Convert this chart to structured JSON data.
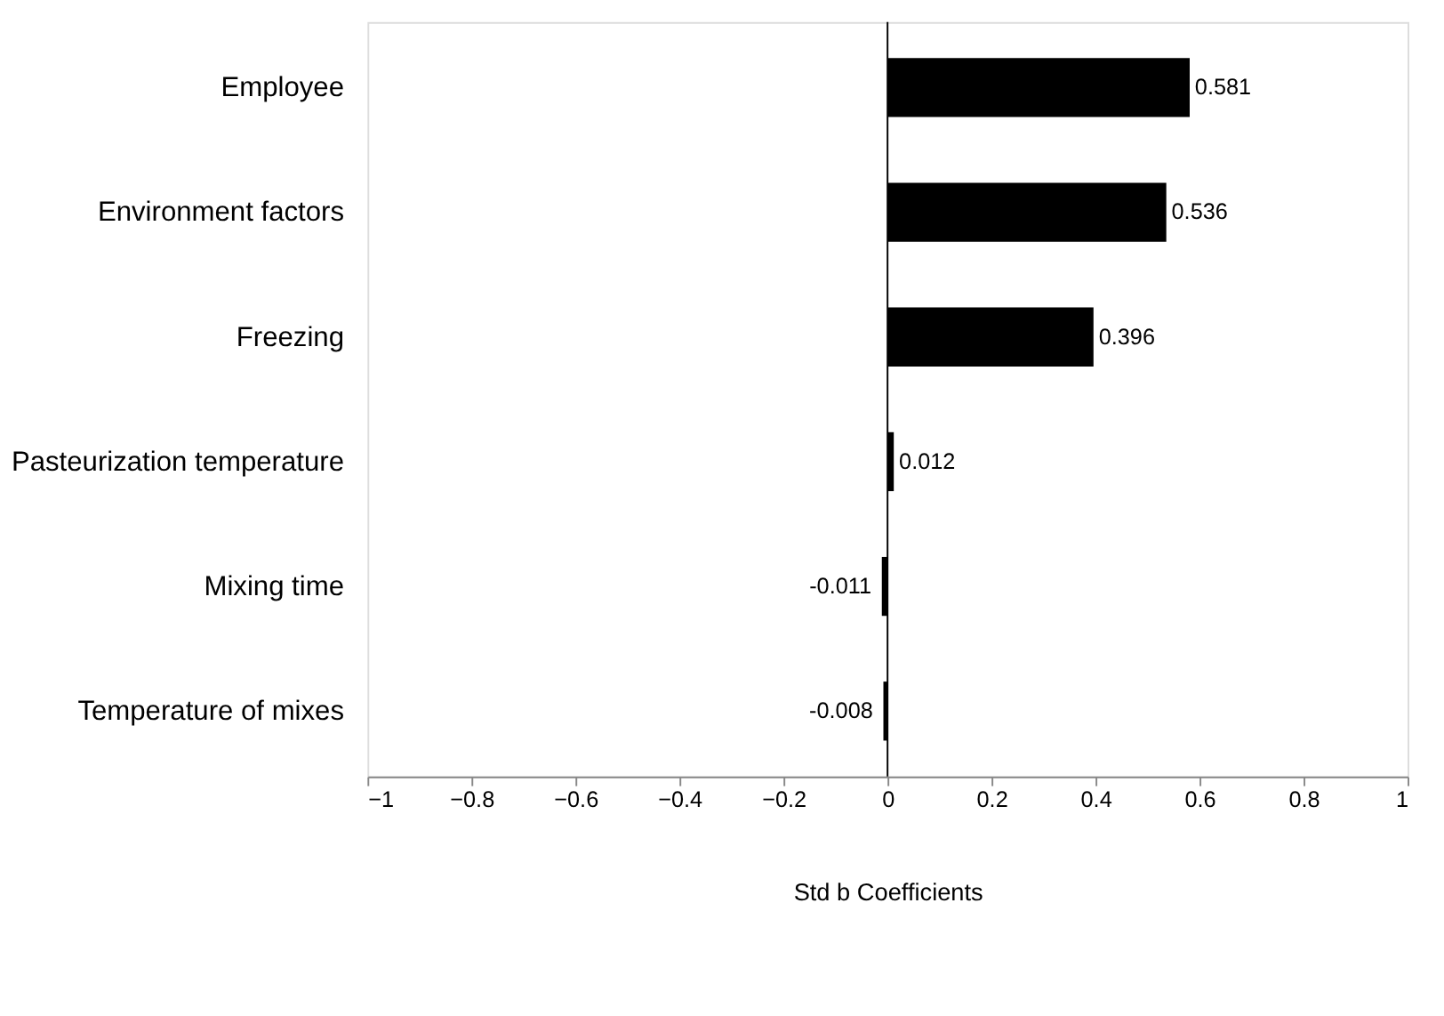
{
  "chart_data": {
    "type": "bar",
    "orientation": "horizontal",
    "xlabel": "Std b Coefficients",
    "categories": [
      "Employee",
      "Environment factors",
      "Freezing",
      "Pasteurization temperature",
      "Mixing time",
      "Temperature of mixes"
    ],
    "values": [
      0.581,
      0.536,
      0.396,
      0.012,
      -0.011,
      -0.008
    ],
    "color": "#000000",
    "xlim": [
      -1,
      1
    ],
    "xticks": [
      -1,
      -0.8,
      -0.6,
      -0.4,
      -0.2,
      0,
      0.2,
      0.4,
      0.6,
      0.8,
      1
    ],
    "ref_lines": [
      {
        "axis": "x",
        "value": 0,
        "color": "#000000"
      }
    ],
    "data_labels": true,
    "grid": false
  }
}
